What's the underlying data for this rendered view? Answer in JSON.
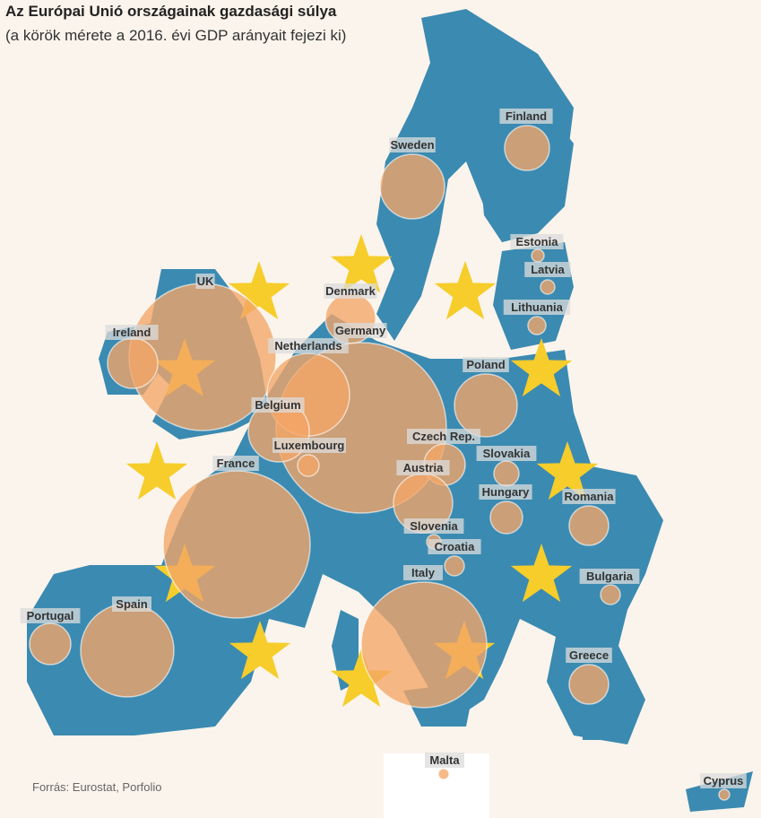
{
  "title": "Az Európai Unió országainak gazdasági súlya",
  "subtitle": "(a körök mérete a  2016. évi GDP arányait fejezi ki)",
  "source": "Forrás: Eurostat, Porfolio",
  "colors": {
    "background": "#fbf4ec",
    "land": "#3b8ab1",
    "bubble": "#f3a566",
    "star": "#f6cd2a",
    "label_bg": "#dcdcdc"
  },
  "countries": [
    {
      "name": "Finland"
    },
    {
      "name": "Sweden"
    },
    {
      "name": "Estonia"
    },
    {
      "name": "Latvia"
    },
    {
      "name": "Denmark"
    },
    {
      "name": "UK"
    },
    {
      "name": "Lithuania"
    },
    {
      "name": "Germany"
    },
    {
      "name": "Ireland"
    },
    {
      "name": "Netherlands"
    },
    {
      "name": "Poland"
    },
    {
      "name": "Belgium"
    },
    {
      "name": "Czech Rep."
    },
    {
      "name": "Luxembourg"
    },
    {
      "name": "Slovakia"
    },
    {
      "name": "France"
    },
    {
      "name": "Austria"
    },
    {
      "name": "Hungary"
    },
    {
      "name": "Romania"
    },
    {
      "name": "Slovenia"
    },
    {
      "name": "Croatia"
    },
    {
      "name": "Italy"
    },
    {
      "name": "Bulgaria"
    },
    {
      "name": "Portugal"
    },
    {
      "name": "Spain"
    },
    {
      "name": "Greece"
    },
    {
      "name": "Malta"
    },
    {
      "name": "Cyprus"
    }
  ]
}
